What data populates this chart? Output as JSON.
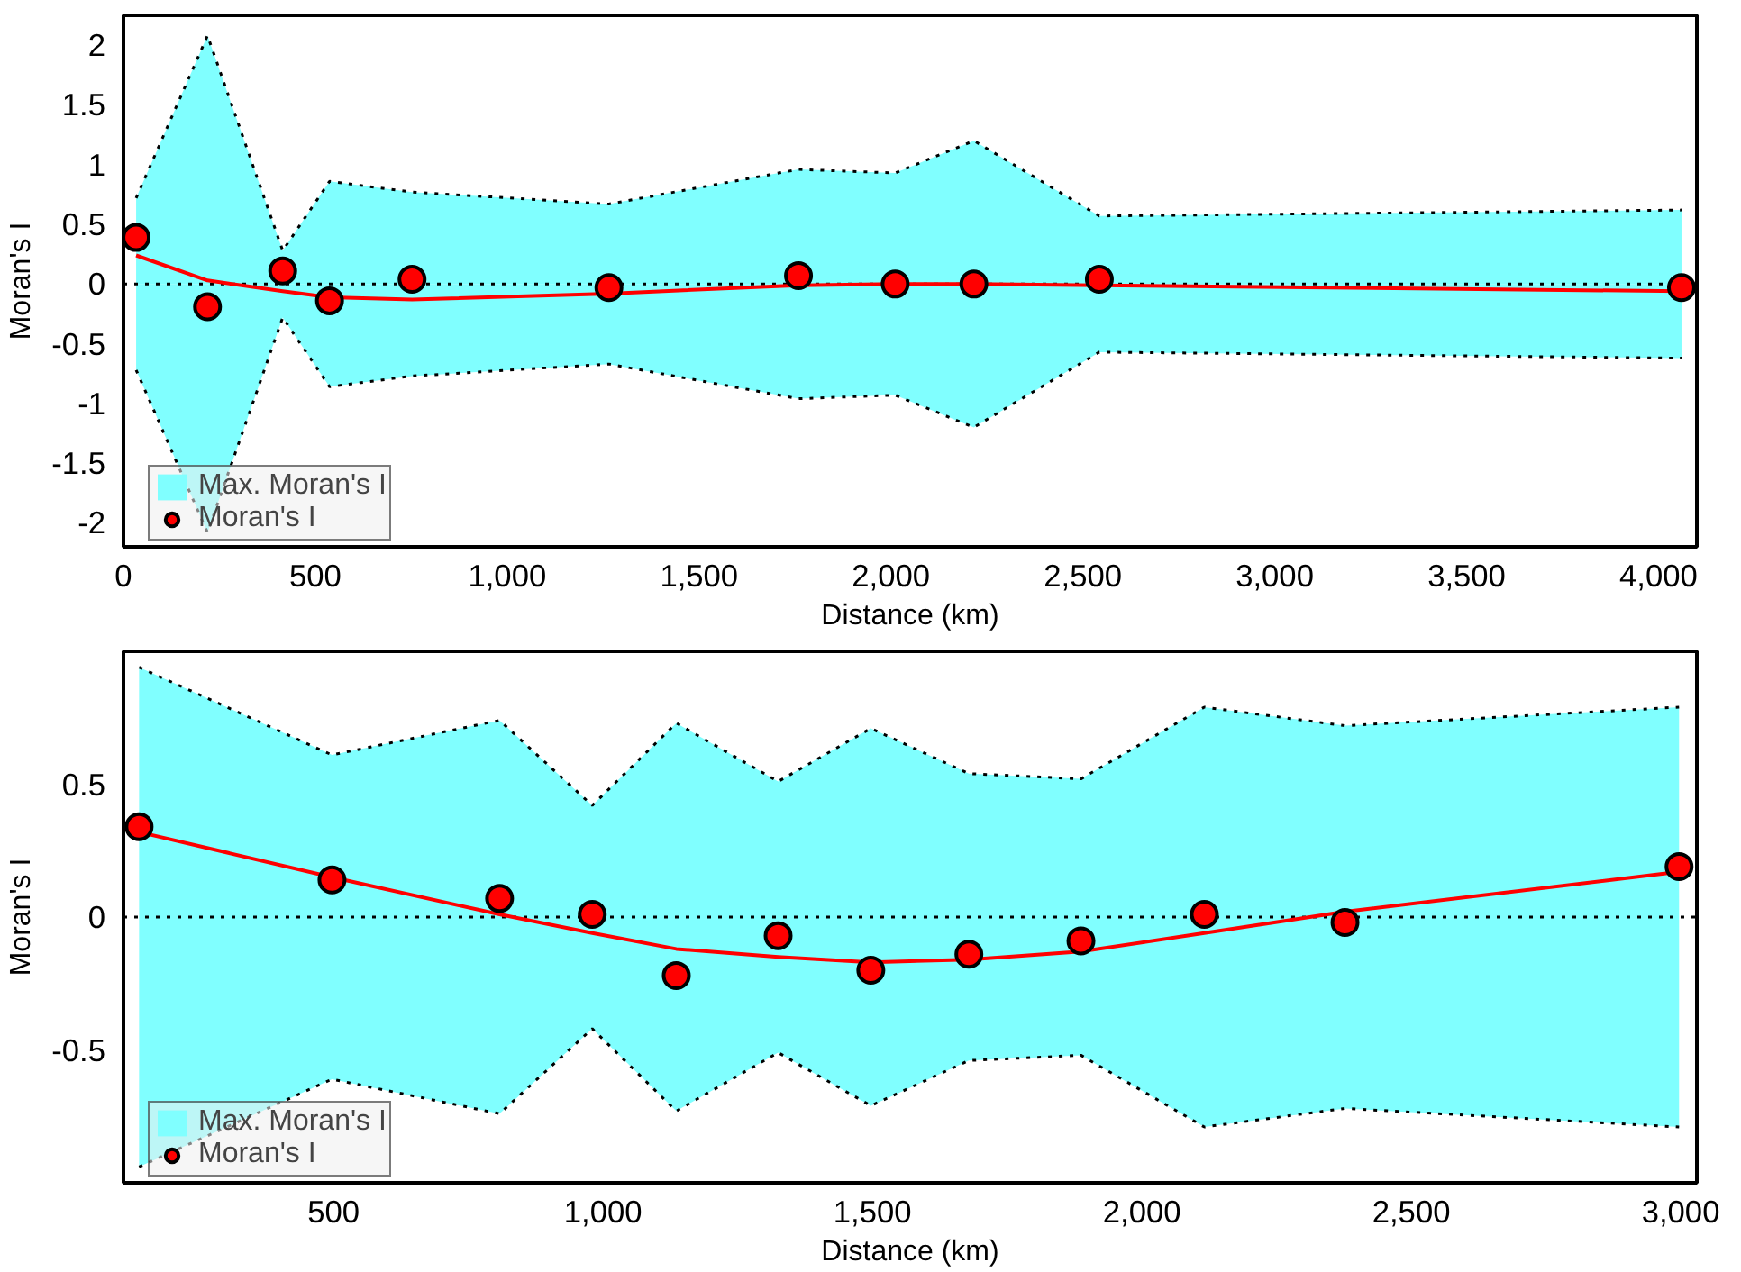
{
  "chart_data": [
    {
      "type": "scatter",
      "xlabel": "Distance (km)",
      "ylabel": "Moran's I",
      "xlim": [
        0,
        4100
      ],
      "ylim": [
        -2.2,
        2.25
      ],
      "xticks": [
        0,
        500,
        {
          "value": 1000,
          "label": "1,000"
        },
        {
          "value": 1500,
          "label": "1,500"
        },
        {
          "value": 2000,
          "label": "2,000"
        },
        {
          "value": 2500,
          "label": "2,500"
        },
        {
          "value": 3000,
          "label": "3,000"
        },
        {
          "value": 3500,
          "label": "3,500"
        },
        {
          "value": 4000,
          "label": "4,000"
        }
      ],
      "yticks": [
        -2,
        -1.5,
        -1,
        -0.5,
        0,
        0.5,
        1,
        1.5,
        2
      ],
      "grid": false,
      "legend": "bottom left",
      "ref_lines": [
        {
          "axis": "y",
          "value": 0,
          "line_style": "dotted"
        }
      ],
      "series": [
        {
          "name": "Max. Moran's I",
          "type": "area",
          "color": "#80ffff",
          "line_style": "dotted",
          "x": [
            33,
            219,
            415,
            537,
            752,
            1265,
            1759,
            2011,
            2216,
            2543,
            4060
          ],
          "values": [
            0.72,
            2.08,
            0.28,
            0.86,
            0.77,
            0.67,
            0.96,
            0.93,
            1.2,
            0.57,
            0.62
          ]
        },
        {
          "type": "area",
          "color": "#80ffff",
          "line_style": "dotted",
          "x": [
            33,
            219,
            415,
            537,
            752,
            1265,
            1759,
            2011,
            2216,
            2543,
            4060
          ],
          "values": [
            -0.72,
            -2.08,
            -0.28,
            -0.86,
            -0.77,
            -0.67,
            -0.96,
            -0.93,
            -1.2,
            -0.57,
            -0.62
          ]
        },
        {
          "type": "line",
          "color": "#ff0000",
          "line_style": "solid",
          "x": [
            33,
            219,
            415,
            537,
            752,
            1265,
            1759,
            2011,
            2216,
            2543,
            4060
          ],
          "values": [
            0.24,
            0.03,
            -0.06,
            -0.11,
            -0.13,
            -0.08,
            -0.01,
            0.0,
            0.0,
            -0.01,
            -0.06
          ]
        },
        {
          "name": "Moran's I",
          "marker": "circle",
          "color": "#ff0000",
          "x": [
            33,
            219,
            415,
            537,
            752,
            1265,
            1759,
            2011,
            2216,
            2543,
            4060
          ],
          "values": [
            0.39,
            -0.19,
            0.11,
            -0.14,
            0.04,
            -0.03,
            0.07,
            0.0,
            0.0,
            0.04,
            -0.03
          ]
        }
      ]
    },
    {
      "type": "scatter",
      "xlabel": "Distance (km)",
      "ylabel": "Moran's I",
      "xlim": [
        110,
        3030
      ],
      "ylim": [
        -1,
        1
      ],
      "xticks": [
        500,
        {
          "value": 1000,
          "label": "1,000"
        },
        {
          "value": 1500,
          "label": "1,500"
        },
        {
          "value": 2000,
          "label": "2,000"
        },
        {
          "value": 2500,
          "label": "2,500"
        },
        {
          "value": 3000,
          "label": "3,000"
        }
      ],
      "yticks": [
        -0.5,
        0,
        0.5
      ],
      "grid": false,
      "legend": "bottom left",
      "ref_lines": [
        {
          "axis": "y",
          "value": 0,
          "line_style": "dotted"
        }
      ],
      "series": [
        {
          "name": "Max. Moran's I",
          "type": "area",
          "color": "#80ffff",
          "line_style": "dotted",
          "x": [
            139,
            497,
            808,
            980,
            1136,
            1325,
            1497,
            1679,
            1887,
            2116,
            2377,
            2997
          ],
          "values": [
            0.94,
            0.61,
            0.74,
            0.42,
            0.73,
            0.51,
            0.71,
            0.54,
            0.52,
            0.79,
            0.72,
            0.79
          ]
        },
        {
          "type": "area",
          "color": "#80ffff",
          "line_style": "dotted",
          "x": [
            139,
            497,
            808,
            980,
            1136,
            1325,
            1497,
            1679,
            1887,
            2116,
            2377,
            2997
          ],
          "values": [
            -0.94,
            -0.61,
            -0.74,
            -0.42,
            -0.73,
            -0.51,
            -0.71,
            -0.54,
            -0.52,
            -0.79,
            -0.72,
            -0.79
          ]
        },
        {
          "type": "line",
          "color": "#ff0000",
          "line_style": "solid",
          "x": [
            139,
            497,
            808,
            980,
            1136,
            1325,
            1497,
            1679,
            1887,
            2116,
            2377,
            2997
          ],
          "values": [
            0.32,
            0.15,
            0.01,
            -0.06,
            -0.12,
            -0.15,
            -0.17,
            -0.16,
            -0.13,
            -0.06,
            0.02,
            0.17
          ]
        },
        {
          "name": "Moran's I",
          "marker": "circle",
          "color": "#ff0000",
          "x": [
            139,
            497,
            808,
            980,
            1136,
            1325,
            1497,
            1679,
            1887,
            2116,
            2377,
            2997
          ],
          "values": [
            0.34,
            0.14,
            0.07,
            0.01,
            -0.22,
            -0.07,
            -0.2,
            -0.14,
            -0.09,
            0.01,
            -0.02,
            0.19
          ]
        }
      ]
    }
  ]
}
